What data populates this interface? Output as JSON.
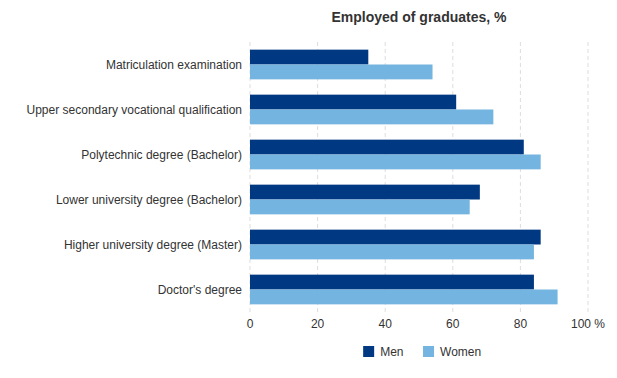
{
  "chart_data": {
    "type": "bar",
    "orientation": "horizontal",
    "title": "Employed of graduates, %",
    "categories": [
      "Matriculation examination",
      "Upper secondary vocational qualification",
      "Polytechnic degree (Bachelor)",
      "Lower university degree (Bachelor)",
      "Higher university degree (Master)",
      "Doctor's degree"
    ],
    "series": [
      {
        "name": "Men",
        "color": "#003882",
        "values": [
          35,
          61,
          81,
          68,
          86,
          84
        ]
      },
      {
        "name": "Women",
        "color": "#74b4e0",
        "values": [
          54,
          72,
          86,
          65,
          84,
          91
        ]
      }
    ],
    "xlim": [
      0,
      100
    ],
    "xticks": [
      0,
      20,
      40,
      60,
      80,
      {
        "value": 100,
        "label": "100 %"
      }
    ],
    "grid": true,
    "legend": "bottom"
  }
}
